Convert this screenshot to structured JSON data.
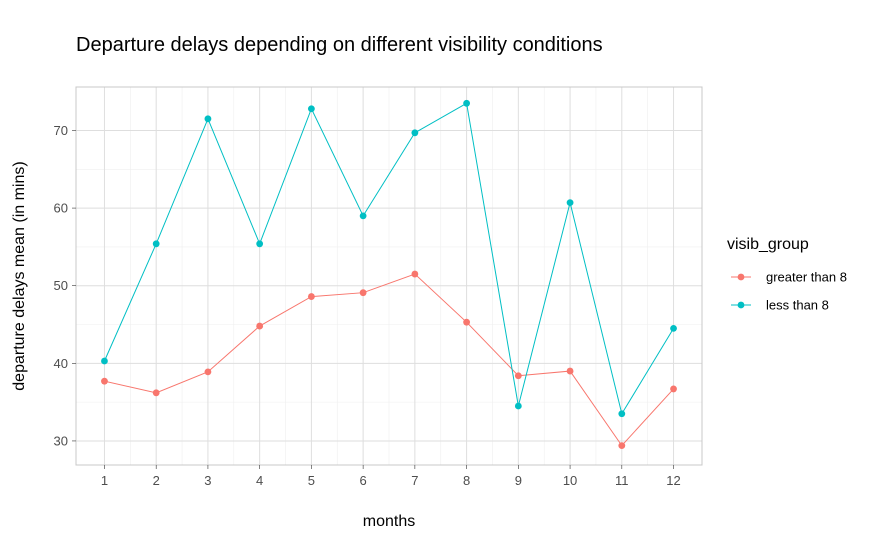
{
  "chart_data": {
    "type": "line",
    "title": "Departure delays depending on different visibility conditions",
    "xlabel": "months",
    "ylabel": "departure delays mean (in mins)",
    "x": [
      1,
      2,
      3,
      4,
      5,
      6,
      7,
      8,
      9,
      10,
      11,
      12
    ],
    "x_tick_labels": [
      "1",
      "2",
      "3",
      "4",
      "5",
      "6",
      "7",
      "8",
      "9",
      "10",
      "11",
      "12"
    ],
    "y_ticks": [
      30,
      40,
      50,
      60,
      70
    ],
    "y_tick_labels": [
      "30",
      "40",
      "50",
      "60",
      "70"
    ],
    "xlim": [
      0.45,
      12.55
    ],
    "ylim": [
      26.9,
      75.6
    ],
    "grid": true,
    "legend": {
      "title": "visib_group",
      "position": "right"
    },
    "series": [
      {
        "name": "greater than 8",
        "color": "#F8766D",
        "values": [
          37.7,
          36.2,
          38.9,
          44.8,
          48.6,
          49.1,
          51.5,
          45.3,
          38.4,
          39.0,
          29.4,
          36.7
        ]
      },
      {
        "name": "less than 8",
        "color": "#00BFC4",
        "values": [
          40.3,
          55.4,
          71.5,
          55.4,
          72.8,
          59.0,
          69.7,
          73.5,
          34.5,
          60.7,
          33.5,
          44.5
        ]
      }
    ]
  }
}
